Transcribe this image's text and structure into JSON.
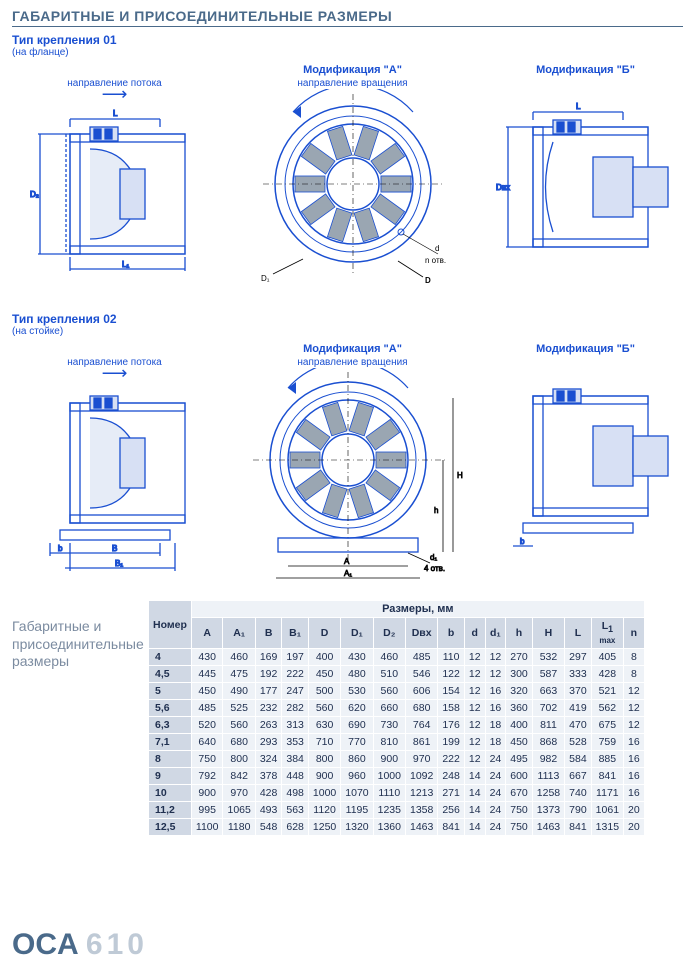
{
  "title": "ГАБАРИТНЫЕ И ПРИСОЕДИНИТЕЛЬНЫЕ РАЗМЕРЫ",
  "mount1_title": "Тип крепления 01",
  "mount1_note": "(на фланце)",
  "mount2_title": "Тип крепления 02",
  "mount2_note": "(на стойке)",
  "flow_label": "направление потока",
  "rot_label": "направление вращения",
  "mod_a": "Модификация \"А\"",
  "mod_b": "Модификация \"Б\"",
  "n_holes": "n отв.",
  "four_holes": "4 отв.",
  "colors": {
    "blue": "#1a4fd1",
    "slate": "#4a6a8a",
    "grid": "#d0d8e4",
    "cell": "#eef2f7",
    "grey_shape": "#9aa6b2"
  },
  "dim_labels": {
    "L": "L",
    "L1": "L₁",
    "D2": "D₂",
    "D1": "D₁",
    "D": "D",
    "d": "d",
    "Dвх": "Dвх",
    "b": "b",
    "B": "B",
    "B1": "B₁",
    "A": "A",
    "A1": "A₁",
    "d1": "d₁",
    "h": "h",
    "H": "H"
  },
  "table": {
    "caption": "Размеры, мм",
    "left_title": "Габаритные и присоединительные размеры",
    "num_head": "Номер",
    "L1max": "L₁ max",
    "columns": [
      "A",
      "A₁",
      "B",
      "B₁",
      "D",
      "D₁",
      "D₂",
      "Dвх",
      "b",
      "d",
      "d₁",
      "h",
      "H",
      "L",
      "L1max",
      "n"
    ],
    "rows": [
      {
        "num": "4",
        "v": [
          430,
          460,
          169,
          197,
          400,
          430,
          460,
          485,
          110,
          12,
          12,
          270,
          532,
          297,
          405,
          8
        ]
      },
      {
        "num": "4,5",
        "v": [
          445,
          475,
          192,
          222,
          450,
          480,
          510,
          546,
          122,
          12,
          12,
          300,
          587,
          333,
          428,
          8
        ]
      },
      {
        "num": "5",
        "v": [
          450,
          490,
          177,
          247,
          500,
          530,
          560,
          606,
          154,
          12,
          16,
          320,
          663,
          370,
          521,
          12
        ]
      },
      {
        "num": "5,6",
        "v": [
          485,
          525,
          232,
          282,
          560,
          620,
          660,
          680,
          158,
          12,
          16,
          360,
          702,
          419,
          562,
          12
        ]
      },
      {
        "num": "6,3",
        "v": [
          520,
          560,
          263,
          313,
          630,
          690,
          730,
          764,
          176,
          12,
          18,
          400,
          811,
          470,
          675,
          12
        ]
      },
      {
        "num": "7,1",
        "v": [
          640,
          680,
          293,
          353,
          710,
          770,
          810,
          861,
          199,
          12,
          18,
          450,
          868,
          528,
          759,
          16
        ]
      },
      {
        "num": "8",
        "v": [
          750,
          800,
          324,
          384,
          800,
          860,
          900,
          970,
          222,
          12,
          24,
          495,
          982,
          584,
          885,
          16
        ]
      },
      {
        "num": "9",
        "v": [
          792,
          842,
          378,
          448,
          900,
          960,
          1000,
          1092,
          248,
          14,
          24,
          600,
          1113,
          667,
          841,
          16
        ]
      },
      {
        "num": "10",
        "v": [
          900,
          970,
          428,
          498,
          1000,
          1070,
          1110,
          1213,
          271,
          14,
          24,
          670,
          1258,
          740,
          1171,
          16
        ]
      },
      {
        "num": "11,2",
        "v": [
          995,
          1065,
          493,
          563,
          1120,
          1195,
          1235,
          1358,
          256,
          14,
          24,
          750,
          1373,
          790,
          1061,
          20
        ]
      },
      {
        "num": "12,5",
        "v": [
          1100,
          1180,
          548,
          628,
          1250,
          1320,
          1360,
          1463,
          841,
          14,
          24,
          750,
          1463,
          841,
          1315,
          20
        ]
      }
    ]
  },
  "brand": {
    "a": "OCA",
    "b": "610"
  }
}
